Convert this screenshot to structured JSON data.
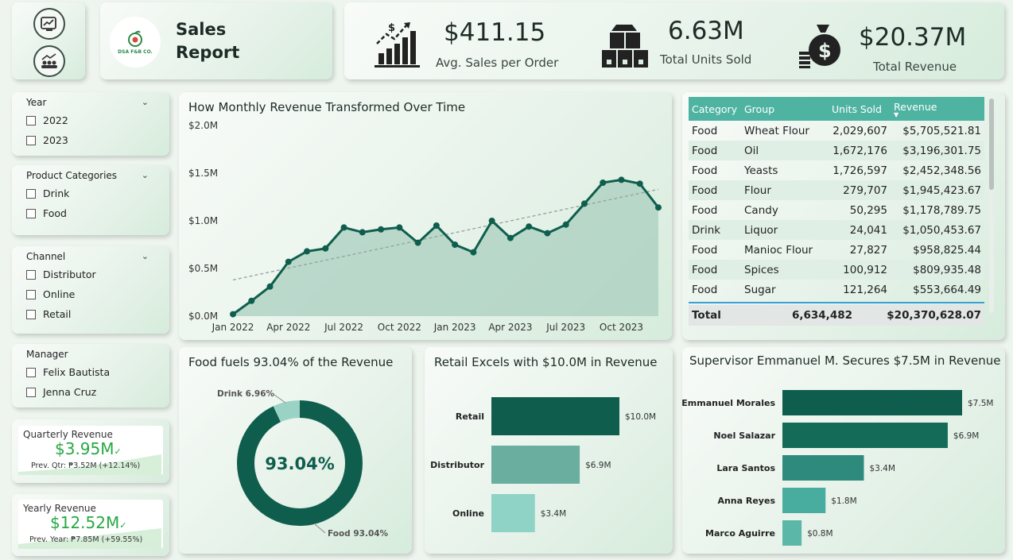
{
  "nav": {
    "buttons": [
      "sales-chart-icon",
      "team-icon"
    ]
  },
  "header": {
    "logo_text": "DSA F&B CO.",
    "title_line1": "Sales",
    "title_line2": "Report"
  },
  "kpis": [
    {
      "value": "$411.15",
      "label": "Avg. Sales per Order",
      "icon": "growth-chart-icon"
    },
    {
      "value": "6.63M",
      "label": "Total Units Sold",
      "icon": "boxes-icon"
    },
    {
      "value": "$20.37M",
      "label": "Total Revenue",
      "icon": "money-bag-icon"
    }
  ],
  "slicers": {
    "year": {
      "title": "Year",
      "options": [
        "2022",
        "2023"
      ]
    },
    "categories": {
      "title": "Product Categories",
      "options": [
        "Drink",
        "Food"
      ]
    },
    "channel": {
      "title": "Channel",
      "options": [
        "Distributor",
        "Online",
        "Retail"
      ]
    },
    "manager": {
      "title": "Manager",
      "options": [
        "Felix Bautista",
        "Jenna Cruz"
      ]
    }
  },
  "quarterly": {
    "title": "Quarterly Revenue",
    "value": "$3.95M",
    "prev": "Prev. Qtr: ₱3.52M (+12.14%)"
  },
  "yearly": {
    "title": "Yearly Revenue",
    "value": "$12.52M",
    "prev": "Prev. Year: ₱7.85M (+59.55%)"
  },
  "line_title": "How Monthly Revenue Transformed Over Time",
  "donut": {
    "title": "Food fuels 93.04% of the Revenue",
    "center": "93.04%",
    "drink_label": "Drink 6.96%",
    "food_label": "Food 93.04%"
  },
  "channel_title": "Retail Excels with $10.0M in Revenue",
  "supervisor_title": "Supervisor Emmanuel M. Secures $7.5M in Revenue",
  "table": {
    "headers": [
      "Category",
      "Group",
      "Units Sold",
      "Revenue"
    ],
    "rows": [
      [
        "Food",
        "Wheat Flour",
        "2,029,607",
        "$5,705,521.81"
      ],
      [
        "Food",
        "Oil",
        "1,672,176",
        "$3,196,301.75"
      ],
      [
        "Food",
        "Yeasts",
        "1,726,597",
        "$2,452,348.56"
      ],
      [
        "Food",
        "Flour",
        "279,707",
        "$1,945,423.67"
      ],
      [
        "Food",
        "Candy",
        "50,295",
        "$1,178,789.75"
      ],
      [
        "Drink",
        "Liquor",
        "24,041",
        "$1,050,453.67"
      ],
      [
        "Food",
        "Manioc Flour",
        "27,827",
        "$958,825.44"
      ],
      [
        "Food",
        "Spices",
        "100,912",
        "$809,935.48"
      ],
      [
        "Food",
        "Sugar",
        "121,264",
        "$553,664.49"
      ]
    ],
    "total": [
      "Total",
      "",
      "6,634,482",
      "$20,370,628.07"
    ]
  },
  "chart_data": [
    {
      "type": "area",
      "title": "How Monthly Revenue Transformed Over Time",
      "x": [
        "Jan 2022",
        "Feb 2022",
        "Mar 2022",
        "Apr 2022",
        "May 2022",
        "Jun 2022",
        "Jul 2022",
        "Aug 2022",
        "Sep 2022",
        "Oct 2022",
        "Nov 2022",
        "Dec 2022",
        "Jan 2023",
        "Feb 2023",
        "Mar 2023",
        "Apr 2023",
        "May 2023",
        "Jun 2023",
        "Jul 2023",
        "Aug 2023",
        "Sep 2023",
        "Oct 2023",
        "Nov 2023",
        "Dec 2023"
      ],
      "x_ticks": [
        "Jan 2022",
        "Apr 2022",
        "Jul 2022",
        "Oct 2022",
        "Jan 2023",
        "Apr 2023",
        "Jul 2023",
        "Oct 2023"
      ],
      "values": [
        0.02,
        0.16,
        0.31,
        0.57,
        0.68,
        0.71,
        0.93,
        0.88,
        0.91,
        0.93,
        0.77,
        0.95,
        0.75,
        0.67,
        1.0,
        0.82,
        0.94,
        0.87,
        0.96,
        1.18,
        1.4,
        1.43,
        1.39,
        1.14
      ],
      "trend": {
        "start": 0.38,
        "end": 1.33
      },
      "y_ticks": [
        "$0.0M",
        "$0.5M",
        "$1.0M",
        "$1.5M",
        "$2.0M"
      ],
      "ylim": [
        0,
        2.0
      ],
      "unit": "$M"
    },
    {
      "type": "pie",
      "title": "Food fuels 93.04% of the Revenue",
      "categories": [
        "Food",
        "Drink"
      ],
      "values": [
        93.04,
        6.96
      ],
      "colors": [
        "#0f5e4d",
        "#9ad3c5"
      ]
    },
    {
      "type": "bar",
      "title": "Retail Excels with $10.0M in Revenue",
      "categories": [
        "Retail",
        "Distributor",
        "Online"
      ],
      "values": [
        10.0,
        6.9,
        3.4
      ],
      "labels": [
        "$10.0M",
        "$6.9M",
        "$3.4M"
      ],
      "colors": [
        "#0f5e4d",
        "#6aaea0",
        "#8fd3c6"
      ],
      "max": 10.0
    },
    {
      "type": "bar",
      "title": "Supervisor Emmanuel M. Secures $7.5M in Revenue",
      "categories": [
        "Emmanuel Morales",
        "Noel Salazar",
        "Lara Santos",
        "Anna Reyes",
        "Marco Aguirre"
      ],
      "values": [
        7.5,
        6.9,
        3.4,
        1.8,
        0.8
      ],
      "labels": [
        "$7.5M",
        "$6.9M",
        "$3.4M",
        "$1.8M",
        "$0.8M"
      ],
      "colors": [
        "#0f5e4d",
        "#136b58",
        "#2e8a7c",
        "#48ad9e",
        "#5bb8a8"
      ],
      "max": 7.5
    }
  ]
}
